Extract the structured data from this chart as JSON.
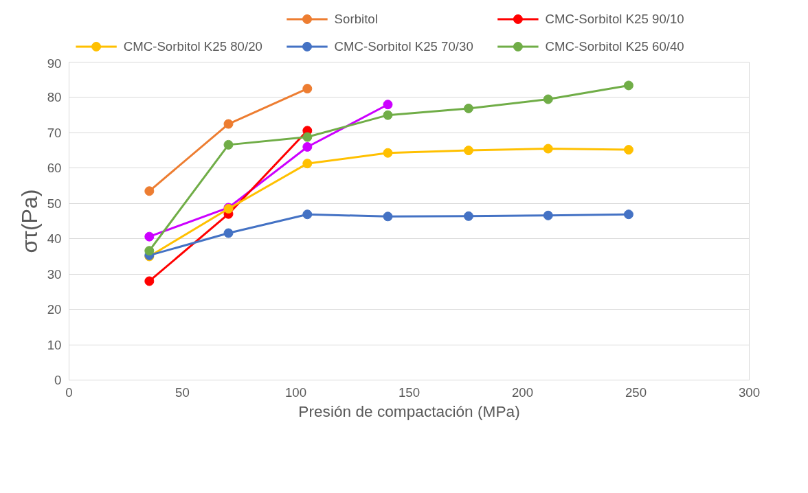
{
  "chart_data": {
    "type": "line",
    "xlabel": "Presión de compactación (MPa)",
    "ylabel": "στ(Pa)",
    "xlim": [
      0,
      300
    ],
    "xticks": [
      0,
      50,
      100,
      150,
      200,
      250,
      300
    ],
    "ylim": [
      0,
      90
    ],
    "yticks": [
      0,
      10,
      20,
      30,
      40,
      50,
      60,
      70,
      80,
      90
    ],
    "grid": "y",
    "legend": "top",
    "marker": "circle",
    "line_style": "solid",
    "series": [
      {
        "color": "#cc00ff",
        "x": [
          35.4,
          70.3,
          105.1,
          140.6
        ],
        "values": [
          40.6,
          48.8,
          66,
          78
        ]
      },
      {
        "name": "Sorbitol",
        "color": "#ed7d31",
        "x": [
          35.4,
          70.3,
          105.1
        ],
        "values": [
          53.5,
          72.5,
          82.5
        ]
      },
      {
        "name": "CMC-Sorbitol K25 90/10",
        "color": "#ff0000",
        "x": [
          35.4,
          70.3,
          105.1
        ],
        "values": [
          28,
          47,
          70.6
        ]
      },
      {
        "name": "CMC-Sorbitol K25 80/20",
        "color": "#ffc000",
        "x": [
          35.4,
          70.3,
          105.1,
          140.6,
          176.2,
          211.3,
          246.8
        ],
        "values": [
          35,
          48.5,
          61.3,
          64.3,
          65,
          65.5,
          65.2
        ]
      },
      {
        "name": "CMC-Sorbitol K25 70/30",
        "color": "#4472c4",
        "x": [
          35.4,
          70.3,
          105.1,
          140.6,
          176.2,
          211.3,
          246.8
        ],
        "values": [
          35.3,
          41.6,
          46.9,
          46.3,
          46.4,
          46.6,
          46.9
        ]
      },
      {
        "name": "CMC-Sorbitol K25 60/40",
        "color": "#70ad47",
        "x": [
          35.4,
          70.3,
          105.1,
          140.6,
          176.2,
          211.3,
          246.8
        ],
        "values": [
          36.6,
          66.6,
          68.8,
          75,
          76.9,
          79.5,
          83.4
        ]
      }
    ]
  }
}
